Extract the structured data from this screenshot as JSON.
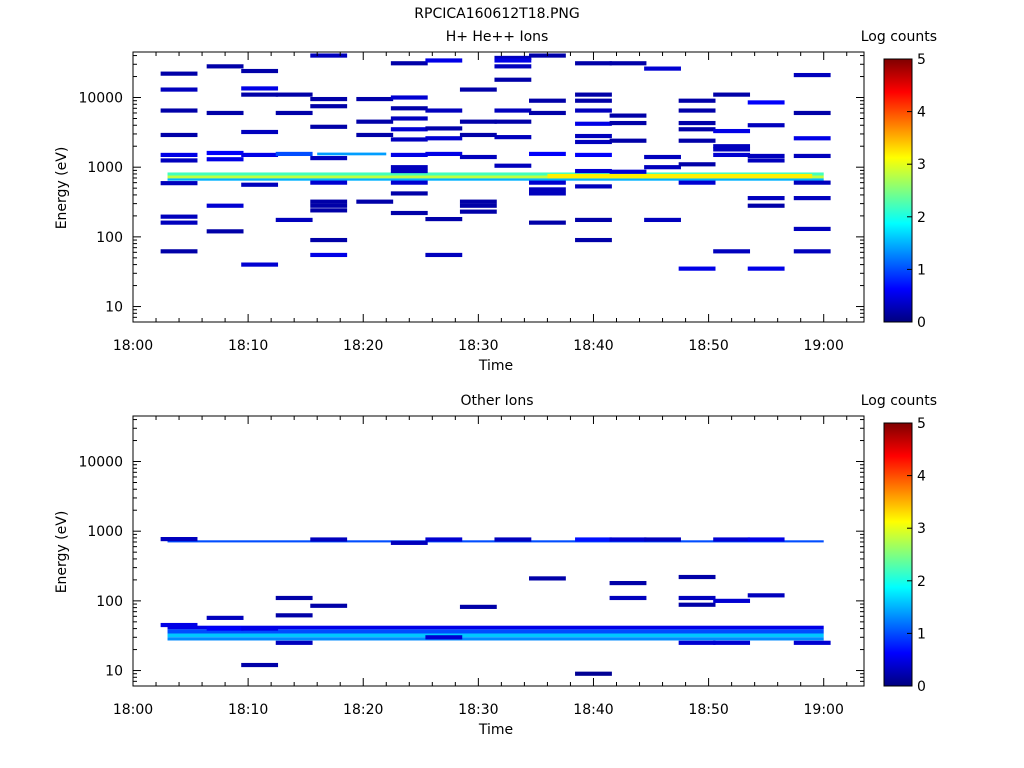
{
  "figure_title": "RPCICA160612T18.PNG",
  "chart_data": [
    {
      "type": "heatmap",
      "title": "H+ He++ Ions",
      "xlabel": "Time",
      "ylabel": "Energy (eV)",
      "x_ticks": [
        "18:00",
        "18:10",
        "18:20",
        "18:30",
        "18:40",
        "18:50",
        "19:00"
      ],
      "y_ticks": [
        "10",
        "100",
        "1000",
        "10000"
      ],
      "ylim": [
        6,
        45000
      ],
      "y_scale": "log",
      "colorbar_label": "Log counts",
      "colorbar_ticks": [
        "0",
        "1",
        "2",
        "3",
        "4",
        "5"
      ],
      "colorbar_range": [
        0,
        5
      ],
      "colormap": "jet",
      "grid": false,
      "bands": [
        {
          "t0": "18:03",
          "t1": "19:00",
          "e0": 760,
          "e1": 840,
          "level": 2.2
        },
        {
          "t0": "18:03",
          "t1": "19:00",
          "e0": 690,
          "e1": 760,
          "level": 2.8
        },
        {
          "t0": "18:03",
          "t1": "19:00",
          "e0": 640,
          "e1": 690,
          "level": 1.5
        },
        {
          "t0": "18:16",
          "t1": "18:22",
          "e0": 1480,
          "e1": 1620,
          "level": 1.4
        },
        {
          "t0": "18:36",
          "t1": "18:59",
          "e0": 690,
          "e1": 800,
          "level": 3.2
        }
      ],
      "events": [
        {
          "t": "18:04",
          "e": 22000,
          "level": 0.2
        },
        {
          "t": "18:04",
          "e": 13000,
          "level": 0.3
        },
        {
          "t": "18:04",
          "e": 6500,
          "level": 0.2
        },
        {
          "t": "18:04",
          "e": 2900,
          "level": 0.2
        },
        {
          "t": "18:04",
          "e": 1500,
          "level": 0.5
        },
        {
          "t": "18:04",
          "e": 1250,
          "level": 0.3
        },
        {
          "t": "18:04",
          "e": 590,
          "level": 0.3
        },
        {
          "t": "18:04",
          "e": 195,
          "level": 0.3
        },
        {
          "t": "18:04",
          "e": 160,
          "level": 0.3
        },
        {
          "t": "18:04",
          "e": 62,
          "level": 0.2
        },
        {
          "t": "18:08",
          "e": 28000,
          "level": 0.2
        },
        {
          "t": "18:08",
          "e": 6000,
          "level": 0.2
        },
        {
          "t": "18:08",
          "e": 1600,
          "level": 0.6
        },
        {
          "t": "18:08",
          "e": 1300,
          "level": 0.5
        },
        {
          "t": "18:08",
          "e": 280,
          "level": 0.4
        },
        {
          "t": "18:08",
          "e": 120,
          "level": 0.2
        },
        {
          "t": "18:11",
          "e": 24000,
          "level": 0.2
        },
        {
          "t": "18:11",
          "e": 13500,
          "level": 0.5
        },
        {
          "t": "18:11",
          "e": 11000,
          "level": 0.2
        },
        {
          "t": "18:11",
          "e": 3200,
          "level": 0.3
        },
        {
          "t": "18:11",
          "e": 1500,
          "level": 0.5
        },
        {
          "t": "18:11",
          "e": 560,
          "level": 0.3
        },
        {
          "t": "18:11",
          "e": 40,
          "level": 0.4
        },
        {
          "t": "18:14",
          "e": 11000,
          "level": 0.2
        },
        {
          "t": "18:14",
          "e": 6000,
          "level": 0.2
        },
        {
          "t": "18:14",
          "e": 1550,
          "level": 1.0
        },
        {
          "t": "18:14",
          "e": 175,
          "level": 0.3
        },
        {
          "t": "18:17",
          "e": 40000,
          "level": 0.3
        },
        {
          "t": "18:17",
          "e": 9500,
          "level": 0.2
        },
        {
          "t": "18:17",
          "e": 7500,
          "level": 0.2
        },
        {
          "t": "18:17",
          "e": 3800,
          "level": 0.2
        },
        {
          "t": "18:17",
          "e": 1350,
          "level": 0.3
        },
        {
          "t": "18:17",
          "e": 600,
          "level": 0.4
        },
        {
          "t": "18:17",
          "e": 320,
          "level": 0.2
        },
        {
          "t": "18:17",
          "e": 280,
          "level": 0.2
        },
        {
          "t": "18:17",
          "e": 240,
          "level": 0.2
        },
        {
          "t": "18:17",
          "e": 90,
          "level": 0.2
        },
        {
          "t": "18:17",
          "e": 55,
          "level": 0.5
        },
        {
          "t": "18:21",
          "e": 9500,
          "level": 0.2
        },
        {
          "t": "18:21",
          "e": 4500,
          "level": 0.2
        },
        {
          "t": "18:21",
          "e": 2900,
          "level": 0.2
        },
        {
          "t": "18:21",
          "e": 320,
          "level": 0.2
        },
        {
          "t": "18:24",
          "e": 31000,
          "level": 0.2
        },
        {
          "t": "18:24",
          "e": 10000,
          "level": 0.4
        },
        {
          "t": "18:24",
          "e": 7000,
          "level": 0.2
        },
        {
          "t": "18:24",
          "e": 5000,
          "level": 0.3
        },
        {
          "t": "18:24",
          "e": 3500,
          "level": 0.4
        },
        {
          "t": "18:24",
          "e": 2500,
          "level": 0.3
        },
        {
          "t": "18:24",
          "e": 1500,
          "level": 0.5
        },
        {
          "t": "18:24",
          "e": 1000,
          "level": 0.3
        },
        {
          "t": "18:24",
          "e": 880,
          "level": 0.3
        },
        {
          "t": "18:24",
          "e": 600,
          "level": 0.4
        },
        {
          "t": "18:24",
          "e": 420,
          "level": 0.2
        },
        {
          "t": "18:24",
          "e": 220,
          "level": 0.2
        },
        {
          "t": "18:27",
          "e": 34000,
          "level": 0.5
        },
        {
          "t": "18:27",
          "e": 6500,
          "level": 0.3
        },
        {
          "t": "18:27",
          "e": 3600,
          "level": 0.2
        },
        {
          "t": "18:27",
          "e": 2600,
          "level": 0.4
        },
        {
          "t": "18:27",
          "e": 1550,
          "level": 0.5
        },
        {
          "t": "18:27",
          "e": 180,
          "level": 0.2
        },
        {
          "t": "18:27",
          "e": 55,
          "level": 0.3
        },
        {
          "t": "18:30",
          "e": 13000,
          "level": 0.2
        },
        {
          "t": "18:30",
          "e": 4500,
          "level": 0.2
        },
        {
          "t": "18:30",
          "e": 2900,
          "level": 0.2
        },
        {
          "t": "18:30",
          "e": 1400,
          "level": 0.3
        },
        {
          "t": "18:30",
          "e": 320,
          "level": 0.2
        },
        {
          "t": "18:30",
          "e": 280,
          "level": 0.2
        },
        {
          "t": "18:30",
          "e": 230,
          "level": 0.2
        },
        {
          "t": "18:33",
          "e": 37000,
          "level": 0.3
        },
        {
          "t": "18:33",
          "e": 34000,
          "level": 0.5
        },
        {
          "t": "18:33",
          "e": 28000,
          "level": 0.3
        },
        {
          "t": "18:33",
          "e": 18000,
          "level": 0.2
        },
        {
          "t": "18:33",
          "e": 6500,
          "level": 0.3
        },
        {
          "t": "18:33",
          "e": 4500,
          "level": 0.2
        },
        {
          "t": "18:33",
          "e": 2700,
          "level": 0.3
        },
        {
          "t": "18:33",
          "e": 1050,
          "level": 0.3
        },
        {
          "t": "18:36",
          "e": 40000,
          "level": 0.2
        },
        {
          "t": "18:36",
          "e": 9000,
          "level": 0.2
        },
        {
          "t": "18:36",
          "e": 6000,
          "level": 0.2
        },
        {
          "t": "18:36",
          "e": 1550,
          "level": 0.6
        },
        {
          "t": "18:36",
          "e": 600,
          "level": 0.4
        },
        {
          "t": "18:36",
          "e": 480,
          "level": 0.3
        },
        {
          "t": "18:36",
          "e": 420,
          "level": 0.3
        },
        {
          "t": "18:36",
          "e": 160,
          "level": 0.2
        },
        {
          "t": "18:40",
          "e": 31000,
          "level": 0.2
        },
        {
          "t": "18:40",
          "e": 11000,
          "level": 0.2
        },
        {
          "t": "18:40",
          "e": 9000,
          "level": 0.2
        },
        {
          "t": "18:40",
          "e": 6500,
          "level": 0.3
        },
        {
          "t": "18:40",
          "e": 4200,
          "level": 0.5
        },
        {
          "t": "18:40",
          "e": 2800,
          "level": 0.3
        },
        {
          "t": "18:40",
          "e": 2300,
          "level": 0.3
        },
        {
          "t": "18:40",
          "e": 1500,
          "level": 0.6
        },
        {
          "t": "18:40",
          "e": 880,
          "level": 0.4
        },
        {
          "t": "18:40",
          "e": 530,
          "level": 0.3
        },
        {
          "t": "18:40",
          "e": 175,
          "level": 0.2
        },
        {
          "t": "18:40",
          "e": 90,
          "level": 0.2
        },
        {
          "t": "18:43",
          "e": 31000,
          "level": 0.2
        },
        {
          "t": "18:43",
          "e": 5500,
          "level": 0.2
        },
        {
          "t": "18:43",
          "e": 4300,
          "level": 0.2
        },
        {
          "t": "18:43",
          "e": 2400,
          "level": 0.2
        },
        {
          "t": "18:43",
          "e": 860,
          "level": 0.4
        },
        {
          "t": "18:46",
          "e": 26000,
          "level": 0.4
        },
        {
          "t": "18:46",
          "e": 1400,
          "level": 0.3
        },
        {
          "t": "18:46",
          "e": 1000,
          "level": 0.3
        },
        {
          "t": "18:46",
          "e": 175,
          "level": 0.3
        },
        {
          "t": "18:49",
          "e": 9000,
          "level": 0.2
        },
        {
          "t": "18:49",
          "e": 6500,
          "level": 0.2
        },
        {
          "t": "18:49",
          "e": 4300,
          "level": 0.2
        },
        {
          "t": "18:49",
          "e": 3500,
          "level": 0.2
        },
        {
          "t": "18:49",
          "e": 2400,
          "level": 0.2
        },
        {
          "t": "18:49",
          "e": 1100,
          "level": 0.2
        },
        {
          "t": "18:49",
          "e": 600,
          "level": 0.4
        },
        {
          "t": "18:49",
          "e": 35,
          "level": 0.5
        },
        {
          "t": "18:52",
          "e": 11000,
          "level": 0.2
        },
        {
          "t": "18:52",
          "e": 3300,
          "level": 0.5
        },
        {
          "t": "18:52",
          "e": 2000,
          "level": 0.3
        },
        {
          "t": "18:52",
          "e": 1800,
          "level": 0.3
        },
        {
          "t": "18:52",
          "e": 1500,
          "level": 0.4
        },
        {
          "t": "18:52",
          "e": 62,
          "level": 0.3
        },
        {
          "t": "18:55",
          "e": 8500,
          "level": 0.6
        },
        {
          "t": "18:55",
          "e": 4000,
          "level": 0.3
        },
        {
          "t": "18:55",
          "e": 1450,
          "level": 0.3
        },
        {
          "t": "18:55",
          "e": 1250,
          "level": 0.3
        },
        {
          "t": "18:55",
          "e": 360,
          "level": 0.3
        },
        {
          "t": "18:55",
          "e": 280,
          "level": 0.2
        },
        {
          "t": "18:55",
          "e": 35,
          "level": 0.5
        },
        {
          "t": "18:59",
          "e": 21000,
          "level": 0.3
        },
        {
          "t": "18:59",
          "e": 6000,
          "level": 0.2
        },
        {
          "t": "18:59",
          "e": 2600,
          "level": 0.5
        },
        {
          "t": "18:59",
          "e": 1450,
          "level": 0.3
        },
        {
          "t": "18:59",
          "e": 600,
          "level": 0.3
        },
        {
          "t": "18:59",
          "e": 360,
          "level": 0.3
        },
        {
          "t": "18:59",
          "e": 130,
          "level": 0.3
        },
        {
          "t": "18:59",
          "e": 62,
          "level": 0.3
        }
      ]
    },
    {
      "type": "heatmap",
      "title": "Other Ions",
      "xlabel": "Time",
      "ylabel": "Energy (eV)",
      "x_ticks": [
        "18:00",
        "18:10",
        "18:20",
        "18:30",
        "18:40",
        "18:50",
        "19:00"
      ],
      "y_ticks": [
        "10",
        "100",
        "1000",
        "10000"
      ],
      "ylim": [
        6,
        45000
      ],
      "y_scale": "log",
      "colorbar_label": "Log counts",
      "colorbar_ticks": [
        "0",
        "1",
        "2",
        "3",
        "4",
        "5"
      ],
      "colorbar_range": [
        0,
        5
      ],
      "colormap": "jet",
      "grid": false,
      "bands": [
        {
          "t0": "18:03",
          "t1": "19:00",
          "e0": 690,
          "e1": 740,
          "level": 1.0
        },
        {
          "t0": "18:03",
          "t1": "19:00",
          "e0": 39,
          "e1": 44,
          "level": 0.5
        },
        {
          "t0": "18:03",
          "t1": "19:00",
          "e0": 34,
          "e1": 39,
          "level": 1.0
        },
        {
          "t0": "18:03",
          "t1": "19:00",
          "e0": 30,
          "e1": 34,
          "level": 1.6
        },
        {
          "t0": "18:03",
          "t1": "19:00",
          "e0": 27,
          "e1": 30,
          "level": 1.3
        }
      ],
      "events": [
        {
          "t": "18:04",
          "e": 770,
          "level": 0.3
        },
        {
          "t": "18:04",
          "e": 45,
          "level": 0.5
        },
        {
          "t": "18:08",
          "e": 57,
          "level": 0.3
        },
        {
          "t": "18:08",
          "e": 40,
          "level": 0.6
        },
        {
          "t": "18:11",
          "e": 40,
          "level": 0.5
        },
        {
          "t": "18:11",
          "e": 12,
          "level": 0.2
        },
        {
          "t": "18:14",
          "e": 110,
          "level": 0.2
        },
        {
          "t": "18:14",
          "e": 62,
          "level": 0.2
        },
        {
          "t": "18:14",
          "e": 25,
          "level": 0.3
        },
        {
          "t": "18:17",
          "e": 760,
          "level": 0.3
        },
        {
          "t": "18:17",
          "e": 85,
          "level": 0.2
        },
        {
          "t": "18:24",
          "e": 680,
          "level": 0.3
        },
        {
          "t": "18:27",
          "e": 760,
          "level": 0.4
        },
        {
          "t": "18:27",
          "e": 30,
          "level": 0.4
        },
        {
          "t": "18:30",
          "e": 82,
          "level": 0.2
        },
        {
          "t": "18:33",
          "e": 760,
          "level": 0.3
        },
        {
          "t": "18:36",
          "e": 210,
          "level": 0.2
        },
        {
          "t": "18:40",
          "e": 760,
          "level": 0.7
        },
        {
          "t": "18:40",
          "e": 9,
          "level": 0.1
        },
        {
          "t": "18:43",
          "e": 760,
          "level": 0.4
        },
        {
          "t": "18:43",
          "e": 180,
          "level": 0.2
        },
        {
          "t": "18:43",
          "e": 110,
          "level": 0.3
        },
        {
          "t": "18:46",
          "e": 760,
          "level": 0.3
        },
        {
          "t": "18:49",
          "e": 220,
          "level": 0.2
        },
        {
          "t": "18:49",
          "e": 110,
          "level": 0.3
        },
        {
          "t": "18:49",
          "e": 88,
          "level": 0.2
        },
        {
          "t": "18:49",
          "e": 25,
          "level": 0.4
        },
        {
          "t": "18:52",
          "e": 760,
          "level": 0.4
        },
        {
          "t": "18:52",
          "e": 100,
          "level": 0.4
        },
        {
          "t": "18:52",
          "e": 25,
          "level": 0.4
        },
        {
          "t": "18:55",
          "e": 760,
          "level": 0.5
        },
        {
          "t": "18:55",
          "e": 120,
          "level": 0.3
        },
        {
          "t": "18:59",
          "e": 25,
          "level": 0.4
        }
      ]
    }
  ]
}
